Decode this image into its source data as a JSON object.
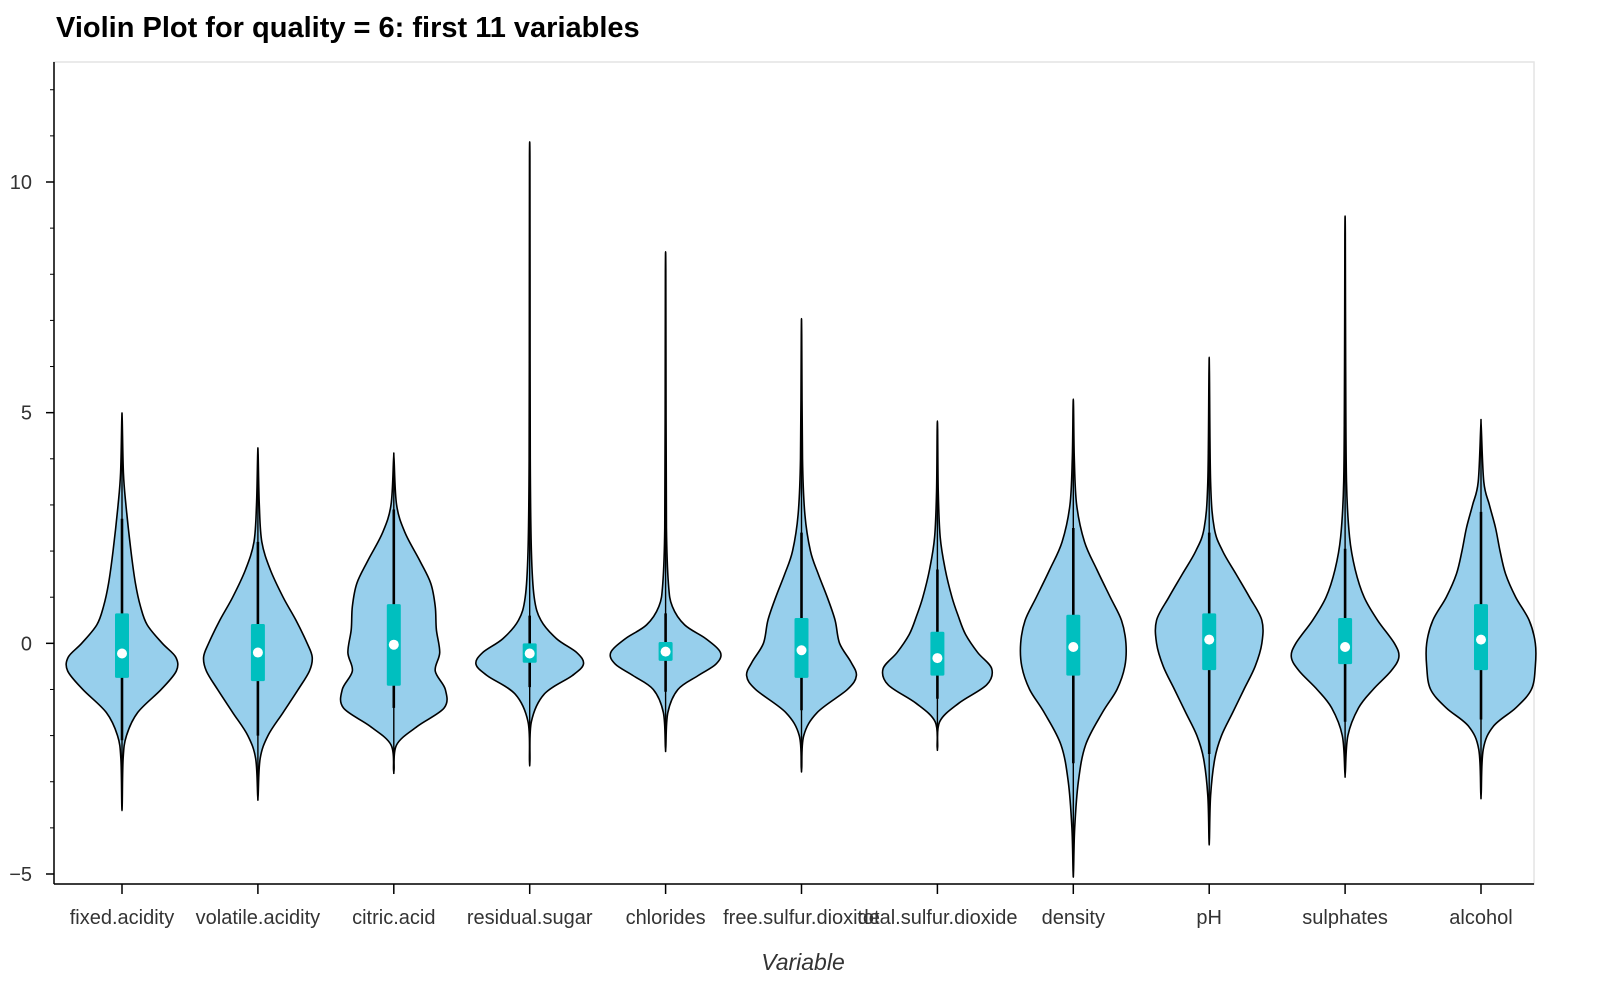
{
  "chart_data": {
    "type": "violin",
    "title": "Violin Plot for quality = 6: first 11 variables",
    "xlabel": "Variable",
    "ylabel": "",
    "ylim": [
      -5.0,
      12.6
    ],
    "yticks": [
      -5,
      0,
      5,
      10
    ],
    "ytick_labels": [
      "−5",
      "0",
      "5",
      "10"
    ],
    "grid": false,
    "legend": "none",
    "colors": {
      "violin_fill": "#97cfec",
      "violin_edge": "#000000",
      "box": "#00bfbf",
      "median": "#ffffff"
    },
    "categories": [
      "fixed.acidity",
      "volatile.acidity",
      "citric.acid",
      "residual.sugar",
      "chlorides",
      "free.sulfur.dioxide",
      "total.sulfur.dioxide",
      "density",
      "pH",
      "sulphates",
      "alcohol"
    ],
    "series": [
      {
        "name": "fixed.acidity",
        "min": -3.5,
        "max": 4.85,
        "whisker_low": -2.1,
        "whisker_high": 2.7,
        "q1": -0.75,
        "q3": 0.65,
        "median": -0.22,
        "density": [
          [
            -3.5,
            0.004
          ],
          [
            -2.5,
            0.02
          ],
          [
            -2.0,
            0.08
          ],
          [
            -1.5,
            0.28
          ],
          [
            -1.0,
            0.7
          ],
          [
            -0.6,
            0.97
          ],
          [
            -0.3,
            0.96
          ],
          [
            0.0,
            0.72
          ],
          [
            0.4,
            0.45
          ],
          [
            0.8,
            0.33
          ],
          [
            1.3,
            0.24
          ],
          [
            2.0,
            0.16
          ],
          [
            3.0,
            0.07
          ],
          [
            3.7,
            0.025
          ],
          [
            4.85,
            0.004
          ]
        ]
      },
      {
        "name": "volatile.acidity",
        "min": -3.3,
        "max": 4.1,
        "whisker_low": -2.0,
        "whisker_high": 2.2,
        "q1": -0.82,
        "q3": 0.42,
        "median": -0.2,
        "density": [
          [
            -3.3,
            0.004
          ],
          [
            -2.5,
            0.04
          ],
          [
            -2.0,
            0.18
          ],
          [
            -1.5,
            0.45
          ],
          [
            -1.0,
            0.72
          ],
          [
            -0.6,
            0.92
          ],
          [
            -0.3,
            0.97
          ],
          [
            0.0,
            0.88
          ],
          [
            0.5,
            0.68
          ],
          [
            1.0,
            0.45
          ],
          [
            1.6,
            0.22
          ],
          [
            2.2,
            0.07
          ],
          [
            3.0,
            0.025
          ],
          [
            4.1,
            0.004
          ]
        ]
      },
      {
        "name": "citric.acid",
        "min": -2.75,
        "max": 4.0,
        "whisker_low": -1.4,
        "whisker_high": 2.9,
        "q1": -0.92,
        "q3": 0.85,
        "median": -0.03,
        "density": [
          [
            -2.75,
            0.004
          ],
          [
            -2.2,
            0.05
          ],
          [
            -1.8,
            0.42
          ],
          [
            -1.4,
            0.9
          ],
          [
            -1.0,
            0.92
          ],
          [
            -0.6,
            0.74
          ],
          [
            -0.2,
            0.82
          ],
          [
            0.3,
            0.76
          ],
          [
            0.8,
            0.74
          ],
          [
            1.3,
            0.66
          ],
          [
            1.8,
            0.46
          ],
          [
            2.4,
            0.2
          ],
          [
            3.0,
            0.05
          ],
          [
            4.0,
            0.004
          ]
        ]
      },
      {
        "name": "residual.sugar",
        "min": -2.55,
        "max": 10.55,
        "whisker_low": -0.95,
        "whisker_high": 0.6,
        "q1": -0.42,
        "q3": 0.0,
        "median": -0.22,
        "density": [
          [
            -2.55,
            0.004
          ],
          [
            -1.7,
            0.03
          ],
          [
            -1.1,
            0.26
          ],
          [
            -0.7,
            0.76
          ],
          [
            -0.45,
            0.96
          ],
          [
            -0.2,
            0.84
          ],
          [
            0.1,
            0.48
          ],
          [
            0.5,
            0.2
          ],
          [
            1.0,
            0.08
          ],
          [
            2.0,
            0.03
          ],
          [
            4.0,
            0.01
          ],
          [
            8.0,
            0.006
          ],
          [
            10.55,
            0.004
          ]
        ]
      },
      {
        "name": "chlorides",
        "min": -2.25,
        "max": 8.1,
        "whisker_low": -1.05,
        "whisker_high": 0.65,
        "q1": -0.38,
        "q3": 0.03,
        "median": -0.18,
        "density": [
          [
            -2.25,
            0.004
          ],
          [
            -1.5,
            0.04
          ],
          [
            -1.0,
            0.22
          ],
          [
            -0.7,
            0.58
          ],
          [
            -0.45,
            0.9
          ],
          [
            -0.2,
            0.98
          ],
          [
            0.1,
            0.72
          ],
          [
            0.4,
            0.34
          ],
          [
            0.8,
            0.12
          ],
          [
            1.3,
            0.05
          ],
          [
            2.5,
            0.015
          ],
          [
            5.0,
            0.008
          ],
          [
            8.1,
            0.004
          ]
        ]
      },
      {
        "name": "free.sulfur.dioxide",
        "min": -2.7,
        "max": 6.7,
        "whisker_low": -1.45,
        "whisker_high": 2.4,
        "q1": -0.75,
        "q3": 0.55,
        "median": -0.15,
        "density": [
          [
            -2.7,
            0.004
          ],
          [
            -2.0,
            0.04
          ],
          [
            -1.5,
            0.28
          ],
          [
            -1.0,
            0.82
          ],
          [
            -0.7,
            0.98
          ],
          [
            -0.4,
            0.88
          ],
          [
            0.0,
            0.68
          ],
          [
            0.5,
            0.6
          ],
          [
            1.0,
            0.46
          ],
          [
            1.5,
            0.3
          ],
          [
            2.0,
            0.16
          ],
          [
            2.8,
            0.06
          ],
          [
            4.0,
            0.018
          ],
          [
            6.7,
            0.004
          ]
        ]
      },
      {
        "name": "total.sulfur.dioxide",
        "min": -2.25,
        "max": 4.65,
        "whisker_low": -1.2,
        "whisker_high": 1.6,
        "q1": -0.7,
        "q3": 0.25,
        "median": -0.32,
        "density": [
          [
            -2.25,
            0.004
          ],
          [
            -1.7,
            0.04
          ],
          [
            -1.3,
            0.38
          ],
          [
            -0.9,
            0.88
          ],
          [
            -0.55,
            0.97
          ],
          [
            -0.2,
            0.72
          ],
          [
            0.2,
            0.5
          ],
          [
            0.6,
            0.37
          ],
          [
            1.0,
            0.26
          ],
          [
            1.6,
            0.14
          ],
          [
            2.3,
            0.05
          ],
          [
            3.3,
            0.015
          ],
          [
            4.65,
            0.004
          ]
        ]
      },
      {
        "name": "density",
        "min": -4.95,
        "max": 5.15,
        "whisker_low": -2.6,
        "whisker_high": 2.5,
        "q1": -0.7,
        "q3": 0.62,
        "median": -0.08,
        "density": [
          [
            -4.95,
            0.004
          ],
          [
            -4.0,
            0.025
          ],
          [
            -3.0,
            0.09
          ],
          [
            -2.2,
            0.22
          ],
          [
            -1.5,
            0.52
          ],
          [
            -1.0,
            0.78
          ],
          [
            -0.5,
            0.92
          ],
          [
            0.0,
            0.94
          ],
          [
            0.5,
            0.86
          ],
          [
            1.0,
            0.66
          ],
          [
            1.6,
            0.42
          ],
          [
            2.2,
            0.2
          ],
          [
            3.0,
            0.06
          ],
          [
            4.0,
            0.018
          ],
          [
            5.15,
            0.004
          ]
        ]
      },
      {
        "name": "pH",
        "min": -4.25,
        "max": 5.9,
        "whisker_low": -2.4,
        "whisker_high": 2.4,
        "q1": -0.58,
        "q3": 0.65,
        "median": 0.08,
        "density": [
          [
            -4.25,
            0.004
          ],
          [
            -3.3,
            0.025
          ],
          [
            -2.5,
            0.1
          ],
          [
            -2.0,
            0.22
          ],
          [
            -1.5,
            0.42
          ],
          [
            -1.0,
            0.62
          ],
          [
            -0.5,
            0.82
          ],
          [
            0.0,
            0.94
          ],
          [
            0.5,
            0.94
          ],
          [
            1.0,
            0.72
          ],
          [
            1.5,
            0.48
          ],
          [
            2.0,
            0.24
          ],
          [
            2.5,
            0.09
          ],
          [
            3.5,
            0.025
          ],
          [
            5.9,
            0.004
          ]
        ]
      },
      {
        "name": "sulphates",
        "min": -2.8,
        "max": 8.9,
        "whisker_low": -1.7,
        "whisker_high": 2.05,
        "q1": -0.45,
        "q3": 0.55,
        "median": -0.08,
        "density": [
          [
            -2.8,
            0.004
          ],
          [
            -2.0,
            0.05
          ],
          [
            -1.4,
            0.24
          ],
          [
            -1.0,
            0.5
          ],
          [
            -0.6,
            0.82
          ],
          [
            -0.3,
            0.96
          ],
          [
            0.0,
            0.88
          ],
          [
            0.5,
            0.58
          ],
          [
            1.0,
            0.34
          ],
          [
            1.6,
            0.18
          ],
          [
            2.3,
            0.08
          ],
          [
            3.5,
            0.025
          ],
          [
            6.0,
            0.01
          ],
          [
            8.9,
            0.004
          ]
        ]
      },
      {
        "name": "alcohol",
        "min": -3.25,
        "max": 4.7,
        "whisker_low": -1.65,
        "whisker_high": 2.85,
        "q1": -0.58,
        "q3": 0.85,
        "median": 0.08,
        "density": [
          [
            -3.25,
            0.004
          ],
          [
            -2.3,
            0.04
          ],
          [
            -1.8,
            0.22
          ],
          [
            -1.4,
            0.62
          ],
          [
            -1.0,
            0.9
          ],
          [
            -0.5,
            0.97
          ],
          [
            0.0,
            0.97
          ],
          [
            0.5,
            0.86
          ],
          [
            1.0,
            0.62
          ],
          [
            1.5,
            0.44
          ],
          [
            2.0,
            0.34
          ],
          [
            2.5,
            0.26
          ],
          [
            3.0,
            0.15
          ],
          [
            3.5,
            0.05
          ],
          [
            4.7,
            0.004
          ]
        ]
      }
    ]
  }
}
